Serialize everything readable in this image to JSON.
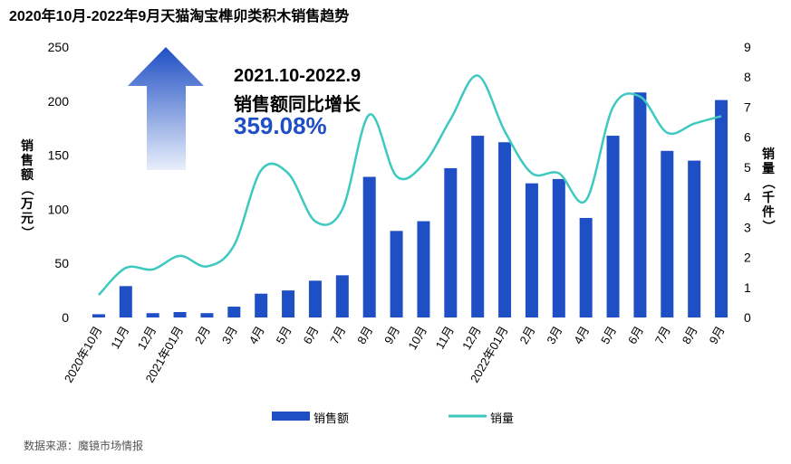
{
  "header": {
    "title": "2020年10月-2022年9月天猫淘宝榫卯类积木销售趋势"
  },
  "annotation": {
    "line1": "2021.10-2022.9",
    "line2": "销售额同比增长",
    "value": "359.08%"
  },
  "source": "数据来源：魔镜市场情报",
  "colors": {
    "bar": "#1f4fc4",
    "line": "#3ec9c0",
    "arrow_top": "#1f4fc4",
    "arrow_bottom": "#e8eefb"
  },
  "chart_data": {
    "type": "bar+line",
    "title": "2020年10月-2022年9月天猫淘宝榫卯类积木销售趋势",
    "categories": [
      "2020年10月",
      "11月",
      "12月",
      "2021年01月",
      "2月",
      "3月",
      "4月",
      "5月",
      "6月",
      "7月",
      "8月",
      "9月",
      "10月",
      "11月",
      "12月",
      "2022年01月",
      "2月",
      "3月",
      "4月",
      "5月",
      "6月",
      "7月",
      "8月",
      "9月"
    ],
    "ylabel_left": "销售额（万元）",
    "ylabel_right": "销量（千件）",
    "ylim_left": [
      0,
      250
    ],
    "yticks_left": [
      0,
      50,
      100,
      150,
      200,
      250
    ],
    "ylim_right": [
      0,
      9
    ],
    "yticks_right": [
      0,
      1,
      2,
      3,
      4,
      5,
      6,
      7,
      8,
      9
    ],
    "legend_position": "bottom",
    "grid": false,
    "series": [
      {
        "name": "销售额",
        "type": "bar",
        "axis": "left",
        "values": [
          3,
          29,
          4,
          5,
          4,
          10,
          22,
          25,
          34,
          39,
          130,
          80,
          89,
          138,
          168,
          162,
          124,
          128,
          92,
          168,
          208,
          154,
          145,
          201
        ]
      },
      {
        "name": "销量",
        "type": "line",
        "axis": "right",
        "smooth": true,
        "values": [
          0.75,
          1.65,
          1.6,
          2.05,
          1.7,
          2.4,
          4.9,
          4.8,
          3.2,
          3.6,
          6.75,
          4.7,
          5.1,
          6.6,
          8.05,
          6.2,
          4.8,
          4.8,
          3.9,
          7.0,
          7.35,
          6.15,
          6.45,
          6.7
        ]
      }
    ]
  }
}
